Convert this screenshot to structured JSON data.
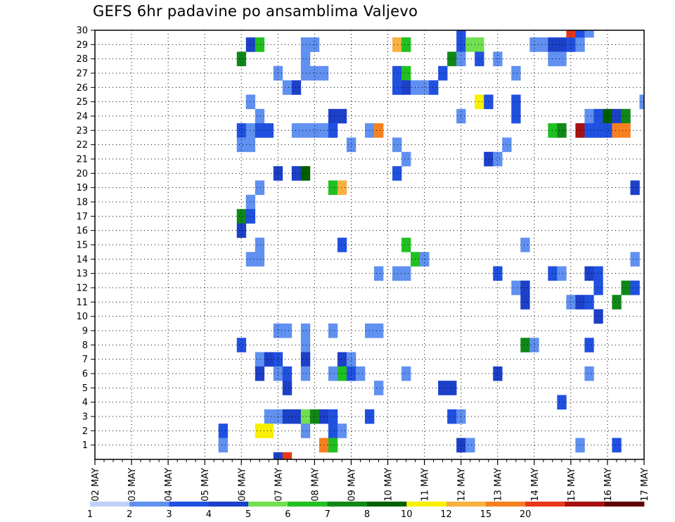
{
  "chart_data": {
    "type": "heatmap",
    "title": "GEFS 6hr padavine po ansamblima Valjevo",
    "xlabel": "",
    "ylabel": "",
    "x_ticks": [
      "02 MAY",
      "03 MAY",
      "04 MAY",
      "05 MAY",
      "06 MAY",
      "07 MAY",
      "08 MAY",
      "09 MAY",
      "10 MAY",
      "11 MAY",
      "12 MAY",
      "13 MAY",
      "14 MAY",
      "15 MAY",
      "16 MAY",
      "17 MAY"
    ],
    "x_unit": "6-hour step from 02 MAY 00Z (4 steps per day)",
    "xlim": [
      0,
      60
    ],
    "y_ticks": [
      1,
      2,
      3,
      4,
      5,
      6,
      7,
      8,
      9,
      10,
      11,
      12,
      13,
      14,
      15,
      16,
      17,
      18,
      19,
      20,
      21,
      22,
      23,
      24,
      25,
      26,
      27,
      28,
      29,
      30
    ],
    "ylim": [
      0,
      30
    ],
    "grid": true,
    "colorbar": {
      "labels": [
        "1",
        "2",
        "3",
        "4",
        "5",
        "6",
        "7",
        "8",
        "10",
        "12",
        "15",
        "20"
      ],
      "colors": [
        "#c0d0f8",
        "#6090f0",
        "#2050e0",
        "#1c40c8",
        "#70e050",
        "#20c020",
        "#108818",
        "#006000",
        "#f8f000",
        "#f8b040",
        "#f88020",
        "#e83818",
        "#a81010",
        "#600000"
      ]
    },
    "cells": [
      [
        40,
        30,
        2
      ],
      [
        40,
        29,
        2
      ],
      [
        41,
        29,
        4
      ],
      [
        42,
        29,
        4
      ],
      [
        33,
        29,
        9
      ],
      [
        34,
        29,
        5
      ],
      [
        48,
        29,
        1
      ],
      [
        49,
        29,
        1
      ],
      [
        50,
        29,
        3
      ],
      [
        51,
        29,
        3
      ],
      [
        52,
        29,
        2
      ],
      [
        53,
        29,
        1
      ],
      [
        17,
        29,
        3
      ],
      [
        18,
        29,
        5
      ],
      [
        23,
        29,
        1
      ],
      [
        24,
        29,
        1
      ],
      [
        52,
        30,
        11
      ],
      [
        53,
        30,
        2
      ],
      [
        54,
        30,
        1
      ],
      [
        16,
        28,
        6
      ],
      [
        23,
        28,
        1
      ],
      [
        39,
        28,
        6
      ],
      [
        40,
        28,
        1
      ],
      [
        42,
        28,
        2
      ],
      [
        44,
        28,
        1
      ],
      [
        50,
        28,
        1
      ],
      [
        51,
        28,
        1
      ],
      [
        20,
        27,
        1
      ],
      [
        23,
        27,
        1
      ],
      [
        24,
        27,
        1
      ],
      [
        25,
        27,
        1
      ],
      [
        33,
        27,
        2
      ],
      [
        34,
        27,
        5
      ],
      [
        38,
        27,
        2
      ],
      [
        46,
        27,
        1
      ],
      [
        21,
        26,
        1
      ],
      [
        22,
        26,
        3
      ],
      [
        33,
        26,
        2
      ],
      [
        34,
        26,
        3
      ],
      [
        35,
        26,
        1
      ],
      [
        36,
        26,
        1
      ],
      [
        37,
        26,
        2
      ],
      [
        17,
        25,
        1
      ],
      [
        42,
        25,
        8
      ],
      [
        43,
        25,
        2
      ],
      [
        46,
        25,
        2
      ],
      [
        60,
        25,
        1
      ],
      [
        18,
        24,
        1
      ],
      [
        26,
        24,
        3
      ],
      [
        27,
        24,
        3
      ],
      [
        40,
        24,
        1
      ],
      [
        46,
        24,
        2
      ],
      [
        54,
        24,
        1
      ],
      [
        55,
        24,
        2
      ],
      [
        56,
        24,
        7
      ],
      [
        57,
        24,
        3
      ],
      [
        58,
        24,
        6
      ],
      [
        16,
        23,
        2
      ],
      [
        17,
        23,
        1
      ],
      [
        18,
        23,
        2
      ],
      [
        19,
        23,
        2
      ],
      [
        22,
        23,
        1
      ],
      [
        23,
        23,
        1
      ],
      [
        24,
        23,
        1
      ],
      [
        25,
        23,
        1
      ],
      [
        26,
        23,
        2
      ],
      [
        30,
        23,
        1
      ],
      [
        31,
        23,
        10
      ],
      [
        50,
        23,
        5
      ],
      [
        51,
        23,
        6
      ],
      [
        53,
        23,
        12
      ],
      [
        54,
        23,
        2
      ],
      [
        55,
        23,
        2
      ],
      [
        56,
        23,
        2
      ],
      [
        57,
        23,
        10
      ],
      [
        58,
        23,
        10
      ],
      [
        16,
        22,
        1
      ],
      [
        17,
        22,
        1
      ],
      [
        28,
        22,
        1
      ],
      [
        33,
        22,
        1
      ],
      [
        45,
        22,
        1
      ],
      [
        34,
        21,
        1
      ],
      [
        43,
        21,
        3
      ],
      [
        44,
        21,
        1
      ],
      [
        20,
        20,
        3
      ],
      [
        22,
        20,
        3
      ],
      [
        23,
        20,
        7
      ],
      [
        33,
        20,
        2
      ],
      [
        18,
        19,
        1
      ],
      [
        26,
        19,
        5
      ],
      [
        27,
        19,
        9
      ],
      [
        59,
        19,
        3
      ],
      [
        17,
        18,
        1
      ],
      [
        16,
        17,
        6
      ],
      [
        17,
        17,
        2
      ],
      [
        16,
        16,
        3
      ],
      [
        18,
        15,
        1
      ],
      [
        27,
        15,
        2
      ],
      [
        34,
        15,
        5
      ],
      [
        47,
        15,
        1
      ],
      [
        17,
        14,
        1
      ],
      [
        18,
        14,
        1
      ],
      [
        35,
        14,
        5
      ],
      [
        36,
        14,
        1
      ],
      [
        59,
        14,
        1
      ],
      [
        31,
        13,
        1
      ],
      [
        33,
        13,
        1
      ],
      [
        34,
        13,
        1
      ],
      [
        44,
        13,
        2
      ],
      [
        50,
        13,
        2
      ],
      [
        51,
        13,
        1
      ],
      [
        54,
        13,
        3
      ],
      [
        55,
        13,
        2
      ],
      [
        46,
        12,
        1
      ],
      [
        47,
        12,
        3
      ],
      [
        55,
        12,
        2
      ],
      [
        58,
        12,
        6
      ],
      [
        59,
        12,
        2
      ],
      [
        47,
        11,
        3
      ],
      [
        52,
        11,
        1
      ],
      [
        53,
        11,
        3
      ],
      [
        54,
        11,
        2
      ],
      [
        57,
        11,
        6
      ],
      [
        55,
        10,
        3
      ],
      [
        20,
        9,
        1
      ],
      [
        21,
        9,
        1
      ],
      [
        23,
        9,
        1
      ],
      [
        26,
        9,
        1
      ],
      [
        30,
        9,
        1
      ],
      [
        31,
        9,
        1
      ],
      [
        16,
        8,
        2
      ],
      [
        23,
        8,
        1
      ],
      [
        47,
        8,
        6
      ],
      [
        48,
        8,
        1
      ],
      [
        54,
        8,
        2
      ],
      [
        18,
        7,
        1
      ],
      [
        19,
        7,
        3
      ],
      [
        20,
        7,
        2
      ],
      [
        23,
        7,
        3
      ],
      [
        27,
        7,
        3
      ],
      [
        28,
        7,
        1
      ],
      [
        18,
        6,
        3
      ],
      [
        20,
        6,
        1
      ],
      [
        21,
        6,
        2
      ],
      [
        23,
        6,
        1
      ],
      [
        26,
        6,
        1
      ],
      [
        27,
        6,
        5
      ],
      [
        28,
        6,
        2
      ],
      [
        29,
        6,
        1
      ],
      [
        34,
        6,
        1
      ],
      [
        44,
        6,
        3
      ],
      [
        54,
        6,
        1
      ],
      [
        21,
        5,
        3
      ],
      [
        31,
        5,
        1
      ],
      [
        38,
        5,
        3
      ],
      [
        39,
        5,
        3
      ],
      [
        51,
        4,
        2
      ],
      [
        19,
        3,
        1
      ],
      [
        20,
        3,
        1
      ],
      [
        21,
        3,
        3
      ],
      [
        22,
        3,
        3
      ],
      [
        23,
        3,
        4
      ],
      [
        24,
        3,
        6
      ],
      [
        25,
        3,
        3
      ],
      [
        26,
        3,
        2
      ],
      [
        30,
        3,
        2
      ],
      [
        39,
        3,
        2
      ],
      [
        40,
        3,
        1
      ],
      [
        14,
        2,
        2
      ],
      [
        18,
        2,
        8
      ],
      [
        19,
        2,
        8
      ],
      [
        23,
        2,
        1
      ],
      [
        26,
        2,
        2
      ],
      [
        27,
        2,
        1
      ],
      [
        14,
        1,
        1
      ],
      [
        25,
        1,
        10
      ],
      [
        26,
        1,
        5
      ],
      [
        40,
        1,
        3
      ],
      [
        41,
        1,
        1
      ],
      [
        53,
        1,
        1
      ],
      [
        57,
        1,
        2
      ],
      [
        20,
        0,
        3
      ],
      [
        21,
        0,
        11
      ]
    ]
  }
}
